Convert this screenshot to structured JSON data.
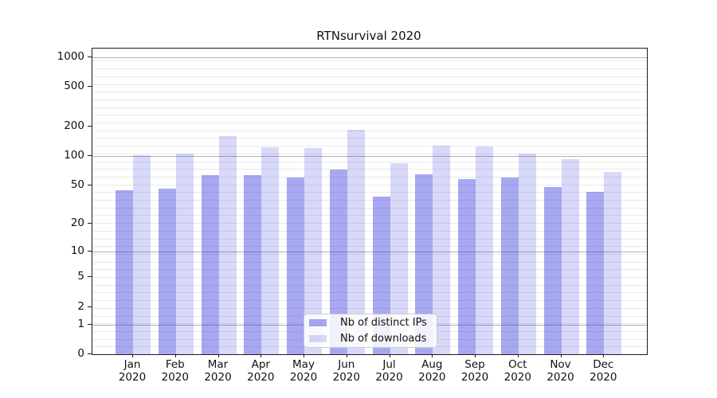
{
  "title": "RTNsurvival 2020",
  "legend": {
    "items": [
      {
        "label": "Nb of distinct IPs",
        "color": "rgba(62,62,222,0.45)"
      },
      {
        "label": "Nb of downloads",
        "color": "rgba(62,62,222,0.20)"
      }
    ],
    "position": "lower center"
  },
  "colors": {
    "bar_distinct_ips": "rgba(62,62,222,0.45)",
    "bar_downloads": "rgba(62,62,222,0.20)",
    "bar_distinct_ips_flat": "#a8a8f0",
    "bar_downloads_flat": "#d8d8f8",
    "grid_major": "#b0b0b0",
    "grid_minor": "#e9e9e9",
    "frame": "#1c1c1c",
    "text": "#111111",
    "background": "#ffffff"
  },
  "chart_data": {
    "type": "bar",
    "title": "RTNsurvival 2020",
    "categories": [
      "Jan 2020",
      "Feb 2020",
      "Mar 2020",
      "Apr 2020",
      "May 2020",
      "Jun 2020",
      "Jul 2020",
      "Aug 2020",
      "Sep 2020",
      "Oct 2020",
      "Nov 2020",
      "Dec 2020"
    ],
    "months": [
      "Jan",
      "Feb",
      "Mar",
      "Apr",
      "May",
      "Jun",
      "Jul",
      "Aug",
      "Sep",
      "Oct",
      "Nov",
      "Dec"
    ],
    "year_label": "2020",
    "series": [
      {
        "name": "Nb of distinct IPs",
        "values": [
          44,
          46,
          64,
          63,
          60,
          72,
          38,
          65,
          58,
          60,
          48,
          43
        ]
      },
      {
        "name": "Nb of downloads",
        "values": [
          101,
          106,
          160,
          122,
          120,
          186,
          85,
          126,
          124,
          106,
          92,
          69
        ]
      }
    ],
    "xlabel": "",
    "ylabel": "",
    "yscale": "log1p",
    "ylim": [
      0,
      1200
    ],
    "yticks": [
      0,
      1,
      2,
      5,
      10,
      20,
      50,
      100,
      200,
      500,
      1000
    ],
    "ytick_labels": [
      "0",
      "1",
      "2",
      "5",
      "10",
      "20",
      "50",
      "100",
      "200",
      "500",
      "1000"
    ],
    "major_grid_values": [
      1,
      10,
      100,
      1000
    ],
    "grid": "on",
    "legend_position": "lower center"
  }
}
